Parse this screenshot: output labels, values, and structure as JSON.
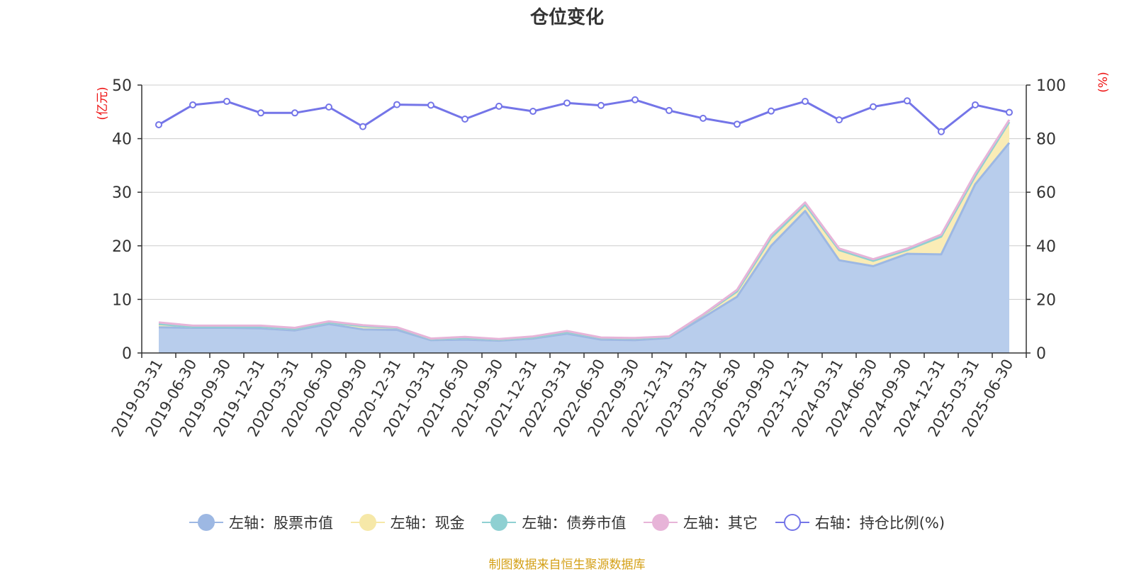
{
  "chart_data": {
    "type": "area",
    "title": "仓位变化",
    "left_axis": {
      "label": "(亿元)",
      "min": 0,
      "max": 50,
      "ticks": [
        0,
        10,
        20,
        30,
        40,
        50
      ]
    },
    "right_axis": {
      "label": "(%)",
      "min": 0,
      "max": 100,
      "ticks": [
        0,
        20,
        40,
        60,
        80,
        100
      ]
    },
    "categories": [
      "2019-03-31",
      "2019-06-30",
      "2019-09-30",
      "2019-12-31",
      "2020-03-31",
      "2020-06-30",
      "2020-09-30",
      "2020-12-31",
      "2021-03-31",
      "2021-06-30",
      "2021-09-30",
      "2021-12-31",
      "2022-03-31",
      "2022-06-30",
      "2022-09-30",
      "2022-12-31",
      "2023-03-31",
      "2023-06-30",
      "2023-09-30",
      "2023-12-31",
      "2024-03-31",
      "2024-06-30",
      "2024-09-30",
      "2024-12-31",
      "2025-03-31",
      "2025-06-30"
    ],
    "series": [
      {
        "name": "左轴：股票市值",
        "axis": "left",
        "stacked": true,
        "color": "#9db8e3",
        "fill": "#b8cdec",
        "values": [
          4.8,
          4.7,
          4.7,
          4.6,
          4.2,
          5.4,
          4.4,
          4.3,
          2.4,
          2.5,
          2.3,
          2.7,
          3.6,
          2.5,
          2.4,
          2.8,
          6.6,
          10.5,
          20.0,
          26.5,
          17.3,
          16.2,
          18.5,
          18.4,
          31.5,
          39.2
        ]
      },
      {
        "name": "左轴：现金",
        "axis": "left",
        "stacked": true,
        "color": "#f6e8a8",
        "fill": "#faecb6",
        "values": [
          0.6,
          0.2,
          0.2,
          0.3,
          0.3,
          0.3,
          0.6,
          0.4,
          0.2,
          0.3,
          0.2,
          0.2,
          0.3,
          0.3,
          0.3,
          0.2,
          0.5,
          1.0,
          1.5,
          1.2,
          1.9,
          1.0,
          0.7,
          3.3,
          1.5,
          3.9
        ]
      },
      {
        "name": "左轴：债券市值",
        "axis": "left",
        "stacked": true,
        "color": "#8fd0d2",
        "fill": "#a9dcde",
        "values": [
          0,
          0,
          0,
          0,
          0,
          0,
          0,
          0,
          0,
          0,
          0,
          0,
          0,
          0,
          0,
          0,
          0,
          0,
          0,
          0,
          0,
          0,
          0,
          0,
          0,
          0
        ]
      },
      {
        "name": "左轴：其它",
        "axis": "left",
        "stacked": true,
        "color": "#e7b4d8",
        "fill": "#efc8e3",
        "values": [
          0.3,
          0.2,
          0.2,
          0.2,
          0.2,
          0.2,
          0.2,
          0.1,
          0.1,
          0.2,
          0.1,
          0.2,
          0.2,
          0.1,
          0.1,
          0.1,
          0.1,
          0.3,
          0.5,
          0.4,
          0.3,
          0.3,
          0.3,
          0.4,
          0.5,
          0.4
        ]
      },
      {
        "name": "右轴：持仓比例(%)",
        "axis": "right",
        "color": "#7475e8",
        "values": [
          85.2,
          92.6,
          93.9,
          89.6,
          89.6,
          91.8,
          84.5,
          92.7,
          92.5,
          87.3,
          92.1,
          90.2,
          93.3,
          92.4,
          94.5,
          90.5,
          87.6,
          85.4,
          90.3,
          93.9,
          87.0,
          91.9,
          94.1,
          82.6,
          92.6,
          89.8
        ]
      }
    ],
    "grid": true,
    "legend_position": "bottom"
  },
  "footer": {
    "source": "制图数据来自恒生聚源数据库"
  }
}
